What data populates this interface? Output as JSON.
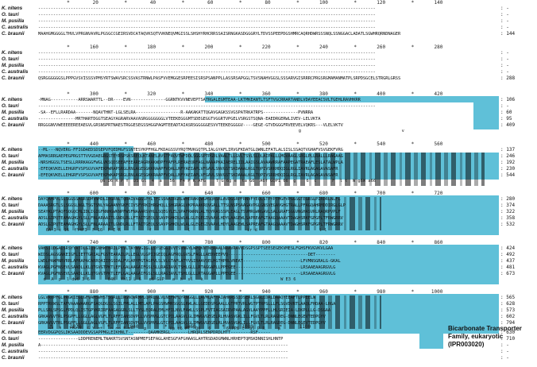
{
  "species": [
    "K. nitens",
    "O. tauri",
    "M. pusilla",
    "C. australis",
    "C. braunii"
  ],
  "accent_color": "#5fc0d8",
  "blocks": [
    {
      "ruler": "          *        20         *        40         *        60         *        80         *       100         *       120         *       140",
      "rows": [
        {
          "seq": "---------------------------------------------------------------------------------------------------------------------------------------",
          "num": ":   -"
        },
        {
          "seq": "---------------------------------------------------------------------------------------------------------------------------------------",
          "num": ":   -"
        },
        {
          "seq": "---------------------------------------------------------------------------------------------------------------------------------------",
          "num": ":   -"
        },
        {
          "seq": "---------------------------------------------------------------------------------------------------------------------------------------",
          "num": ":   -"
        },
        {
          "seq": "MAAHGMGGGGLTHVLVPRGNVAVRLPGSGCCGEIRSVDCATAQVKSQTVVKNEQVMGISSLSHSHYRHCRRSSAISRNGKASDGGGRYLTDVSSPEEPDGSHMRCAQRHDWRSSSNQLSSNGGACLADATLSGWHRQRNDNAGER",
          "num": ":  144"
        }
      ],
      "cons": ""
    },
    {
      "ruler": "          *       160         *       180         *       200         *       220         *       240         *       260         *       280",
      "rows": [
        {
          "seq": "---------------------------------------------------------------------------------------------------------------------------------------",
          "num": ":   -"
        },
        {
          "seq": "---------------------------------------------------------------------------------------------------------------------------------------",
          "num": ":   -"
        },
        {
          "seq": "---------------------------------------------------------------------------------------------------------------------------------------",
          "num": ":   -"
        },
        {
          "seq": "---------------------------------------------------------------------------------------------------------------------------------------",
          "num": ":   -"
        },
        {
          "seq": "QSRGGGGGGSLPPPGVSVISSSVPMSYRTSWAVSRCSSVASTRNWLPASFVVEMGGESRPEESISRSPSANPPLLASSRSAPGGLTSVSNAHVGGSLSSSARVGISRRRCPRGSRGMAMANMATPLSRPDSGCELSTRGRLGRSS",
          "num": ":  288"
        }
      ],
      "cons": ""
    },
    {
      "ruler": "          *       300         *       320         *       340         *       360         *       380         *       400         *       420",
      "rows": [
        {
          "seq": "-MNAG-----------ARRSWARTTL--DR----EVN--------------GGRNTKVVNEVEPTSATRGALEGMTEAA-LKTMKEANTLTSFTVGCRRARTANDLVDAYEEACSVLTGEHLRAVHKRR",
          "num": ":  106"
        },
        {
          "seq": "---------------------------------------------------------------------------------------------------------------------------------------",
          "num": ":   -"
        },
        {
          "seq": "-SA--EFLLRARDAA-------NQAVTHNT-LGLSELRA------------------R-AAKAKATTQGAVGAGKSSVGSPATRKATRPS--------------PVNRRA",
          "num": ":   60"
        },
        {
          "seq": "---------------MRTHARTDGGTSEAGYAGRARVAAVASRGGGGGGGLVTEEKEGGGMTSDEGEGGTVGGRTVPGELVSRGSTSQNA-EAEDRGERWLIVEV-LELVKTA",
          "num": ":   95"
        },
        {
          "seq": "RRGGGNVVWEEEEEREEAEGVLGRSNSPRTNAESTRGGESEGSSHGGPAGMTEEADTAIASRSGGGGGESVVTEEKEGGGGV----GEGE-GTVDGGGFRVEEVELVQKRS---VLELVKTV",
          "num": ":  409"
        }
      ],
      "cons": "                                                                                                     g                                       v"
    },
    {
      "ruler": "          *       440         *       460         *       480         *       500         *       520         *       540         *       560",
      "rows": [
        {
          "seq": "--ML---NQVERG-FFIGDAEDSDSEPVFQEDMGFSSNTESYKPFHGLFKDAGSSVYRQTMVKGQTPLIALGYAFLIRVGFKDATGLQWNLEFATLALSISLSSAQTVGHAFVSVGEKFVRG",
          "num": ":  137"
        },
        {
          "seq": "APMASRRGAEPEGPRGSTTVVGDAEGRGSTEYRSPSKSREQLKTANELAVSTFAQVTWFDDLSGGSPTPGDLVAALTLLGVLTSVLSLQLAIPALLLMGVAAGLSRGLPLLRALLLRAGAAG",
          "num": ":  246"
        },
        {
          "seq": "-NRSHGGSLTSESLLRRRKAGGFWGLVKSQDSEEAFEEAREAGRKAKWDPFYAFPLRERAEQRFAGLNAAAPKAIAERELIILAAIGSLAVAAWRRAFAAPEGATRAEAFLESLATALWPLA",
          "num": ":  192"
        },
        {
          "seq": "-EFEQKVKELLEHGRFVSPSGVVAFEKPWRAPSRGLRNLAGESGKKRAAPFVQALLNFYAEIAPLVFGAVLSNVGSTSKDAAALKGLTQPIVSRRHDQIGLRGLIAVRLAGAGAVASAFR",
          "num": ":  230"
        },
        {
          "seq": "-EFEQKVKELLEHGRFVSPSGVVAFEKPWKAPSRGLRNLAGESGKKRAAPFVQALLNFYAEIAPLVFGAVLSNVGSTSKDAAALKGLTQPIVSRRHDQIGLRGLIAVRLAGAGAVASAFR",
          "num": ":  544"
        }
      ],
      "cons": "                        g6 D6 R P Y  D5 Gl  4  a   56  F4 P K AFG    T G 6g e  ta G6  A6f GQP1 66  g    6  c      F  l t  W g6W a66"
    },
    {
      "ruler": "          *       600         *       620         *       640         *       660         *       680         *       700         *       720",
      "rows": [
        {
          "seq": "DAYQAHPVLSLSGGSSAGRSDMVNMDLIRGRNLTQRAIVAGGSPYLTFISSNAIRGRLWHERAKQWGMSQNSRLAVDGSRPFRNVFYEQLSTPYPTMGPVPGGSGTEGRSLPIRDRLNLFL",
          "num": ":  280"
        },
        {
          "seq": "DAAASRGTLSLSGGSLNGLTSGTSNLYAGAANYGKFCIVSFYRKIHRGHQLLSHGRAGLVKPRAAKRQVGALLTTSLNSPSAAGAVPGLGNSVEGAVGHGTRALLPFAGQAHRMDDIRGLGLP",
          "num": ":  374"
        },
        {
          "seq": "SEAYKLPTAQFSQGQCMLIDLIGIGFNNHGWKNPFWSFNAAARSVHLLSQEGYLELSPAFRWRNLALTQYRASSSPLEAGLTSVMRGWRGAVLSALGRAFSGGVNGHASVRLRAQRPVPLF",
          "num": ":  322"
        },
        {
          "seq": "ADSLGIPQTEAMAGHGYLSLLFNLARAAITLGNDLRLLFTAITGEQLSSAVPGHKDLWLALGLEGEGIVAAVLHDYLAAGEWLSAPREAFGTAAGQAAAVTDAGHSRKFGPGPLTFRWGRRV",
          "num": ":  358"
        },
        {
          "seq": "ADSLGIPQTEAMAGHGYLSLLFNLARAAITLGNDLRLLFTAITGEQLSSAVPGHKDLWLALGLEGEGIVAAVLHDYLAAGEWLSAPREAFGTAAGQAAAVTDAGHSRKFGPGPLTFRWGRRV",
          "num": ":  532"
        }
      ],
      "cons": "   6A 3 c 16  fY4P3  F 16  F E R           f              l                      ir d                        l l"
    },
    {
      "ruler": "          *       740         *       760         *       780         *       800         *       820         *       840         *       860",
      "rows": [
        {
          "seq": "VAKSIQDGAISRSYYATDLGIQVGNHWTNRILPYVLTAYNVGIGLLSYSEGGIVVTSVNGYLWPQKNTNERAALNRAVRAVVDSGPSSPTSEESEGEKVMESLFGHSFKVGVKVLGAA",
          "num": ":  424"
        },
        {
          "seq": "WIDSLAGSGNKEIGFLIETTGRIALFGSTEARAILPLLEGLVLGPIIGEIQLAGFRQLGVSLFAGLLAEDVEEPVQ--------------------------------DET--------",
          "num": ":  492"
        },
        {
          "seq": "LWDLPAWPNRVRRLAPRAPACARRQAIIEGSDALFVLARYFGTAGPVLSLVLGTAPLATYVGIRAAVQELHGTHPRLVNEAT-----------------------LFVMNSGRALG-GKAL",
          "num": ":  437"
        },
        {
          "seq": "KVAGLPGFNSEVLSAADLLKLQTGVGTPKTLEFLGALAAGAIFGSLSLLRAGIAVLTSHLGLLLRTAGGAPLLPPEGEE--------------------------LRSAAEAAGRGVLG",
          "num": ":  481"
        },
        {
          "seq": "KVAGLPGFNSEVLSAADLLKLQTGVGTPKTLEFLGALAAGAIFGSLSLLRAGIAVLTSHLGLLLRTAGGAPLLPPEGEE--------------------------LRSAAEAAGRGVLG",
          "num": ":  673"
        }
      ],
      "cons": "  d  A  p  l dw6 3 6       64K  Yhl1 L 6   e6 GLP   a  h  sl   k                              W E3 6"
    },
    {
      "ruler": "          *       880         *       900         *       920         *       940         *       960         *       980         *      1000",
      "rows": [
        {
          "seq": "LGLVRVPFGLPRGKIEGLGFVAMSWHSTSGRLLIRGNQWRMPLQPRLGLVLNEFWFLYRNGGLLLAVMLAFYAIAHKRSSIDSERLSGGLIDRLDAAQYEEAFTLPPEELW",
          "num": ":  565"
        },
        {
          "seq": "RPPTRVWSLTAFVAAAWAARGFSAQGDGSLSGILFMLALLMELAPLPAGSRWMRSGGSLRWLALLGEDDSPGAALLGTPRTVRLWGTPTRPSLLLFLSGVDVRTLAAQLFHDAA-LRGA",
          "num": ":  628"
        },
        {
          "seq": "PLLSRLSPSGLFPDLQLISTGPVKRIRFAAGAGGRLSLLTYSLEQRALEMLHFILNVLFAWLLSSPLFVTIAGSAIRVPAALAGVLAAYPPFLLHLSRIEIA-LDKPLLLG-DSGAA",
          "num": ":  573"
        },
        {
          "seq": "GRKAVGVTRLPSGPFLLGGLLAGLVGFLTLRFFIANSDVPLLVVSMVGLGTCPILAAGVLGLIMWGVGEGELRLHVASVGKLILLFGVLTLRLRAGDEG-DNNLEGEVTEDPGYV",
          "num": ":  602"
        },
        {
          "seq": "GRKAVGVTRLPSGPFLLGGLLAGLVGFLTLRFFIANSDVPLLVVSMVGLGTCPILAAGVLGLIMWGVGEGELRLHVASVGKLILLFGVLTLRLRAGDEG-DNNLEGEVTEDPGYV",
          "num": ":  794"
        }
      ],
      "cons": "    ad  3   lFw Y  G Y gt   n gn F eR    p         Vp t6 PT  Q6   6      6lPP6 l  al P R     p"
    },
    {
      "ruler": "    *      1020         *      1040         *      1060         *      1080         *      1100",
      "rows": [
        {
          "seq": "EERVDGGPQSLDKSAADDDEVGSAPPMGLEIKHNLT--------QAAMKERGL-------LHRQRLSENPDRDLHTT--------RSF-----",
          "num": ":  630"
        },
        {
          "seq": "----------------LDDPRENEMLTNAKRTSVSNTASNPMEFSEFAGLAHESGFAFGHAASLAHTRSDADGMWNLHRHEPTQMSKDNNISHLHNTP",
          "num": ":  710"
        },
        {
          "seq": "A---------------------------------------------------------------------------------------------------",
          "num": ":   -"
        },
        {
          "seq": "----------------------------------------------------------------------------------------------------",
          "num": ":   -"
        },
        {
          "seq": "----------------------------------------------------------------------------------------------------",
          "num": ":   -"
        }
      ],
      "cons": ""
    }
  ],
  "legend": {
    "label": "Bicarbonate Transporter Family, eukaryotic (IPR003020)"
  }
}
